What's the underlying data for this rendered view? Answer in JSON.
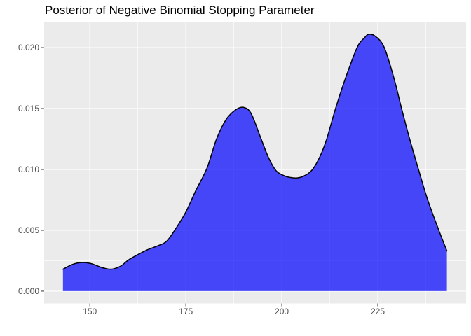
{
  "colors": {
    "background": "#FFFFFF",
    "panel_background": "#EBEBEB",
    "gridline": "#FFFFFF",
    "density_fill": "#0000FF",
    "density_fill_opacity": 0.7,
    "density_outline": "#000000",
    "axis_text": "#4D4D4D",
    "tick_mark": "#333333",
    "title_text": "#000000"
  },
  "chart_data": {
    "type": "area",
    "subtype": "density",
    "title": "Posterior of Negative Binomial Stopping Parameter",
    "xlabel": "",
    "ylabel": "",
    "legend": "none",
    "grid": "major+minor",
    "x_axis": {
      "ticks": [
        150,
        175,
        200,
        225
      ],
      "tick_labels": [
        "150",
        "175",
        "200",
        "225"
      ],
      "minor_ticks": [
        162.5,
        187.5,
        212.5,
        237.5
      ],
      "range": [
        138.1,
        248.0
      ]
    },
    "y_axis": {
      "ticks": [
        0,
        0.005,
        0.01,
        0.015,
        0.02
      ],
      "tick_labels": [
        "0.000",
        "0.005",
        "0.010",
        "0.015",
        "0.020"
      ],
      "minor_ticks": [
        0.0025,
        0.0075,
        0.0125,
        0.0175
      ],
      "range": [
        -0.00101,
        0.02213
      ]
    },
    "series": [
      {
        "name": "posterior_density",
        "points": [
          [
            143.0,
            0.0018
          ],
          [
            145.5,
            0.0022
          ],
          [
            148.0,
            0.00235
          ],
          [
            150.5,
            0.00225
          ],
          [
            153.0,
            0.00195
          ],
          [
            155.5,
            0.0018
          ],
          [
            158.0,
            0.00205
          ],
          [
            160.0,
            0.00255
          ],
          [
            162.5,
            0.003
          ],
          [
            165.0,
            0.0034
          ],
          [
            167.5,
            0.0037
          ],
          [
            170.0,
            0.0041
          ],
          [
            172.5,
            0.0052
          ],
          [
            175.0,
            0.0065
          ],
          [
            177.5,
            0.0082
          ],
          [
            180.5,
            0.0101
          ],
          [
            183.0,
            0.0125
          ],
          [
            185.5,
            0.0141
          ],
          [
            188.0,
            0.0149
          ],
          [
            190.0,
            0.0151
          ],
          [
            192.0,
            0.0146
          ],
          [
            194.5,
            0.0126
          ],
          [
            196.5,
            0.011
          ],
          [
            198.5,
            0.0099
          ],
          [
            200.5,
            0.0095
          ],
          [
            202.0,
            0.00935
          ],
          [
            204.0,
            0.0093
          ],
          [
            206.0,
            0.0095
          ],
          [
            208.0,
            0.01
          ],
          [
            210.0,
            0.0111
          ],
          [
            211.7,
            0.0125
          ],
          [
            214.0,
            0.015
          ],
          [
            216.6,
            0.0175
          ],
          [
            219.6,
            0.02
          ],
          [
            221.5,
            0.0208
          ],
          [
            222.7,
            0.0211
          ],
          [
            224.5,
            0.0209
          ],
          [
            226.7,
            0.02
          ],
          [
            229.2,
            0.0175
          ],
          [
            231.2,
            0.015
          ],
          [
            233.3,
            0.0125
          ],
          [
            235.6,
            0.01
          ],
          [
            238.0,
            0.0075
          ],
          [
            240.9,
            0.005
          ],
          [
            243.0,
            0.0033
          ]
        ]
      }
    ]
  }
}
